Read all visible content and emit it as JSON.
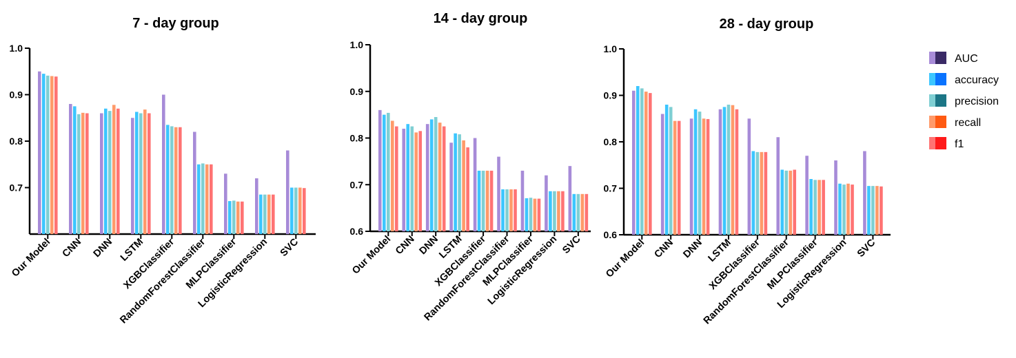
{
  "chart_data": [
    {
      "type": "bar",
      "title": "7 - day group",
      "ylim": [
        0.6,
        1.0
      ],
      "yticks": [
        "1.0",
        "0.9",
        "0.8",
        "0.7"
      ],
      "categories": [
        "Our Model",
        "CNN",
        "DNN",
        "LSTM",
        "XGBClassifier",
        "RandomForestClassifier",
        "MLPClassifier",
        "LogisticRegression",
        "SVC"
      ],
      "series": [
        {
          "name": "AUC",
          "values": [
            0.95,
            0.88,
            0.86,
            0.85,
            0.9,
            0.82,
            0.73,
            0.72,
            0.78
          ]
        },
        {
          "name": "accuracy",
          "values": [
            0.945,
            0.875,
            0.87,
            0.863,
            0.835,
            0.75,
            0.671,
            0.685,
            0.7
          ]
        },
        {
          "name": "precision",
          "values": [
            0.941,
            0.858,
            0.865,
            0.86,
            0.832,
            0.752,
            0.672,
            0.685,
            0.7
          ]
        },
        {
          "name": "recall",
          "values": [
            0.94,
            0.861,
            0.878,
            0.868,
            0.83,
            0.75,
            0.67,
            0.685,
            0.7
          ]
        },
        {
          "name": "f1",
          "values": [
            0.939,
            0.86,
            0.87,
            0.86,
            0.83,
            0.75,
            0.67,
            0.685,
            0.699
          ]
        }
      ]
    },
    {
      "type": "bar",
      "title": "14 - day group",
      "ylim": [
        0.6,
        1.0
      ],
      "yticks": [
        "1.0",
        "0.9",
        "0.8",
        "0.7",
        "0.6"
      ],
      "categories": [
        "Our Model",
        "CNN",
        "DNN",
        "LSTM",
        "XGBClassifier",
        "RandomForestClassifier",
        "MLPClassifier",
        "LogisticRegression",
        "SVC"
      ],
      "series": [
        {
          "name": "AUC",
          "values": [
            0.86,
            0.82,
            0.83,
            0.79,
            0.8,
            0.76,
            0.73,
            0.72,
            0.74
          ]
        },
        {
          "name": "accuracy",
          "values": [
            0.85,
            0.83,
            0.84,
            0.81,
            0.73,
            0.69,
            0.671,
            0.686,
            0.68
          ]
        },
        {
          "name": "precision",
          "values": [
            0.854,
            0.825,
            0.845,
            0.808,
            0.73,
            0.69,
            0.672,
            0.686,
            0.68
          ]
        },
        {
          "name": "recall",
          "values": [
            0.837,
            0.812,
            0.833,
            0.795,
            0.73,
            0.69,
            0.67,
            0.686,
            0.68
          ]
        },
        {
          "name": "f1",
          "values": [
            0.825,
            0.815,
            0.825,
            0.78,
            0.73,
            0.69,
            0.67,
            0.686,
            0.68
          ]
        }
      ]
    },
    {
      "type": "bar",
      "title": "28 - day group",
      "ylim": [
        0.6,
        1.0
      ],
      "yticks": [
        "1.0",
        "0.9",
        "0.8",
        "0.7",
        "0.6"
      ],
      "categories": [
        "Our Model",
        "CNN",
        "DNN",
        "LSTM",
        "XGBClassifier",
        "RandomForestClassifier",
        "MLPClassifier",
        "LogisticRegression",
        "SVC"
      ],
      "series": [
        {
          "name": "AUC",
          "values": [
            0.91,
            0.86,
            0.85,
            0.87,
            0.85,
            0.81,
            0.77,
            0.76,
            0.78
          ]
        },
        {
          "name": "accuracy",
          "values": [
            0.92,
            0.88,
            0.87,
            0.875,
            0.78,
            0.74,
            0.72,
            0.71,
            0.705
          ]
        },
        {
          "name": "precision",
          "values": [
            0.915,
            0.875,
            0.865,
            0.88,
            0.778,
            0.738,
            0.718,
            0.708,
            0.705
          ]
        },
        {
          "name": "recall",
          "values": [
            0.908,
            0.845,
            0.85,
            0.879,
            0.778,
            0.738,
            0.718,
            0.71,
            0.705
          ]
        },
        {
          "name": "f1",
          "values": [
            0.905,
            0.845,
            0.849,
            0.87,
            0.778,
            0.74,
            0.718,
            0.708,
            0.704
          ]
        }
      ]
    }
  ],
  "legend": {
    "placement": "right",
    "items": [
      {
        "label": "AUC",
        "swatch_color": "#3a2a66",
        "bar_color": "#a78bd8"
      },
      {
        "label": "accuracy",
        "swatch_color": "#0a73ff",
        "bar_color": "#3cc6ff"
      },
      {
        "label": "precision",
        "swatch_color": "#1c7686",
        "bar_color": "#7fcfd3"
      },
      {
        "label": "recall",
        "swatch_color": "#ff5a12",
        "bar_color": "#ff9a6a"
      },
      {
        "label": "f1",
        "swatch_color": "#ff1a1a",
        "bar_color": "#ff7373"
      }
    ]
  }
}
